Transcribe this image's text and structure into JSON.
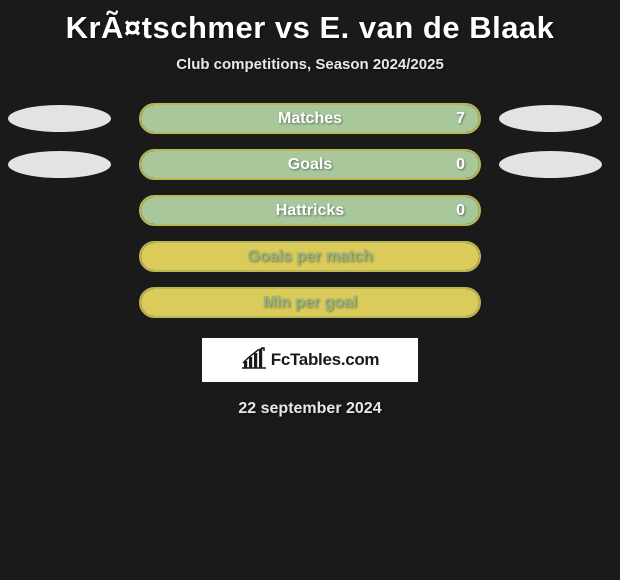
{
  "title": "KrÃ¤tschmer vs E. van de Blaak",
  "subtitle": "Club competitions, Season 2024/2025",
  "date": "22 september 2024",
  "logo_text": "FcTables.com",
  "colors": {
    "page_bg": "#1a1a1a",
    "title_color": "#ffffff",
    "subtitle_color": "#e8e8e8",
    "ellipse_fill": "#e3e3e3",
    "logo_bg": "#ffffff",
    "logo_text_color": "#1a1a1a"
  },
  "rows": [
    {
      "label": "Matches",
      "value": "7",
      "show_value": true,
      "show_ellipses": true,
      "border_color": "#b9b654",
      "fill_color": "#a8c89c",
      "fill_pct": 100,
      "label_color": "#ffffff",
      "value_color": "#ffffff"
    },
    {
      "label": "Goals",
      "value": "0",
      "show_value": true,
      "show_ellipses": true,
      "border_color": "#b9b654",
      "fill_color": "#a8c89c",
      "fill_pct": 100,
      "label_color": "#ffffff",
      "value_color": "#ffffff"
    },
    {
      "label": "Hattricks",
      "value": "0",
      "show_value": true,
      "show_ellipses": false,
      "border_color": "#b9b654",
      "fill_color": "#a8c89c",
      "fill_pct": 100,
      "label_color": "#ffffff",
      "value_color": "#ffffff"
    },
    {
      "label": "Goals per match",
      "value": "",
      "show_value": false,
      "show_ellipses": false,
      "border_color": "#b9b654",
      "fill_color": "#dacb5a",
      "fill_pct": 100,
      "label_color": "#95b487",
      "value_color": "#95b487"
    },
    {
      "label": "Min per goal",
      "value": "",
      "show_value": false,
      "show_ellipses": false,
      "border_color": "#b9b654",
      "fill_color": "#dacb5a",
      "fill_pct": 100,
      "label_color": "#95b487",
      "value_color": "#95b487"
    }
  ]
}
